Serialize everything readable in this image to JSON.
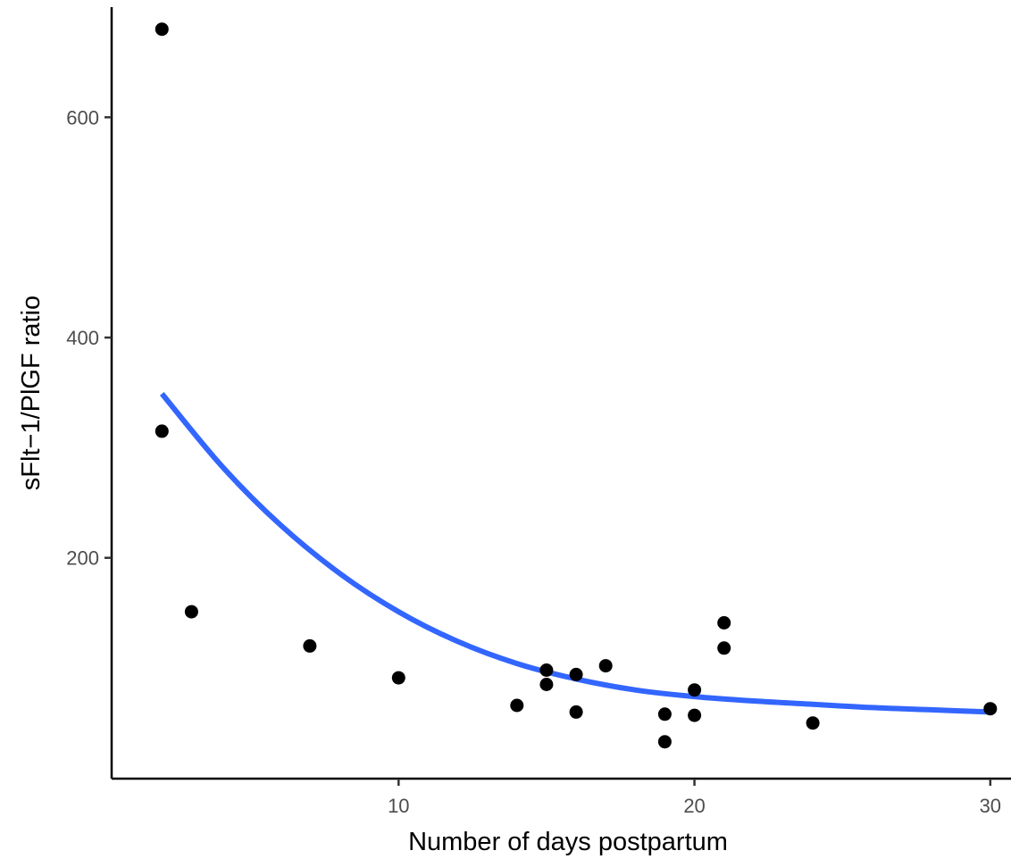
{
  "chart_data": {
    "type": "scatter",
    "title": "",
    "xlabel": "Number of days postpartum",
    "ylabel": "sFlt−1/PlGF ratio",
    "xlim": [
      0.3,
      30.7
    ],
    "ylim": [
      -0.5,
      700
    ],
    "x_ticks": [
      10,
      20,
      30
    ],
    "x_tick_labels": [
      "10",
      "20",
      "30"
    ],
    "y_ticks": [
      200,
      400,
      600
    ],
    "y_tick_labels": [
      "200",
      "400",
      "600"
    ],
    "grid": false,
    "legend": "none",
    "point_color": "#000000",
    "curve_color": "#3366ff",
    "points": [
      {
        "x": 2,
        "y": 680
      },
      {
        "x": 2,
        "y": 315
      },
      {
        "x": 3,
        "y": 151
      },
      {
        "x": 7,
        "y": 120
      },
      {
        "x": 10,
        "y": 91
      },
      {
        "x": 14,
        "y": 66
      },
      {
        "x": 15,
        "y": 98
      },
      {
        "x": 15,
        "y": 85
      },
      {
        "x": 16,
        "y": 94
      },
      {
        "x": 16,
        "y": 60
      },
      {
        "x": 17,
        "y": 102
      },
      {
        "x": 19,
        "y": 58
      },
      {
        "x": 19,
        "y": 33
      },
      {
        "x": 20,
        "y": 80
      },
      {
        "x": 20,
        "y": 57
      },
      {
        "x": 21,
        "y": 141
      },
      {
        "x": 21,
        "y": 118
      },
      {
        "x": 24,
        "y": 50
      },
      {
        "x": 30,
        "y": 63
      }
    ],
    "fit_curve": {
      "x": [
        2,
        4,
        6,
        8,
        10,
        12,
        14,
        16,
        18,
        20,
        22,
        24,
        26,
        28,
        30
      ],
      "y": [
        349,
        284,
        230,
        186,
        151,
        124,
        104,
        90,
        80,
        74,
        70,
        67,
        64,
        62,
        60
      ]
    }
  }
}
